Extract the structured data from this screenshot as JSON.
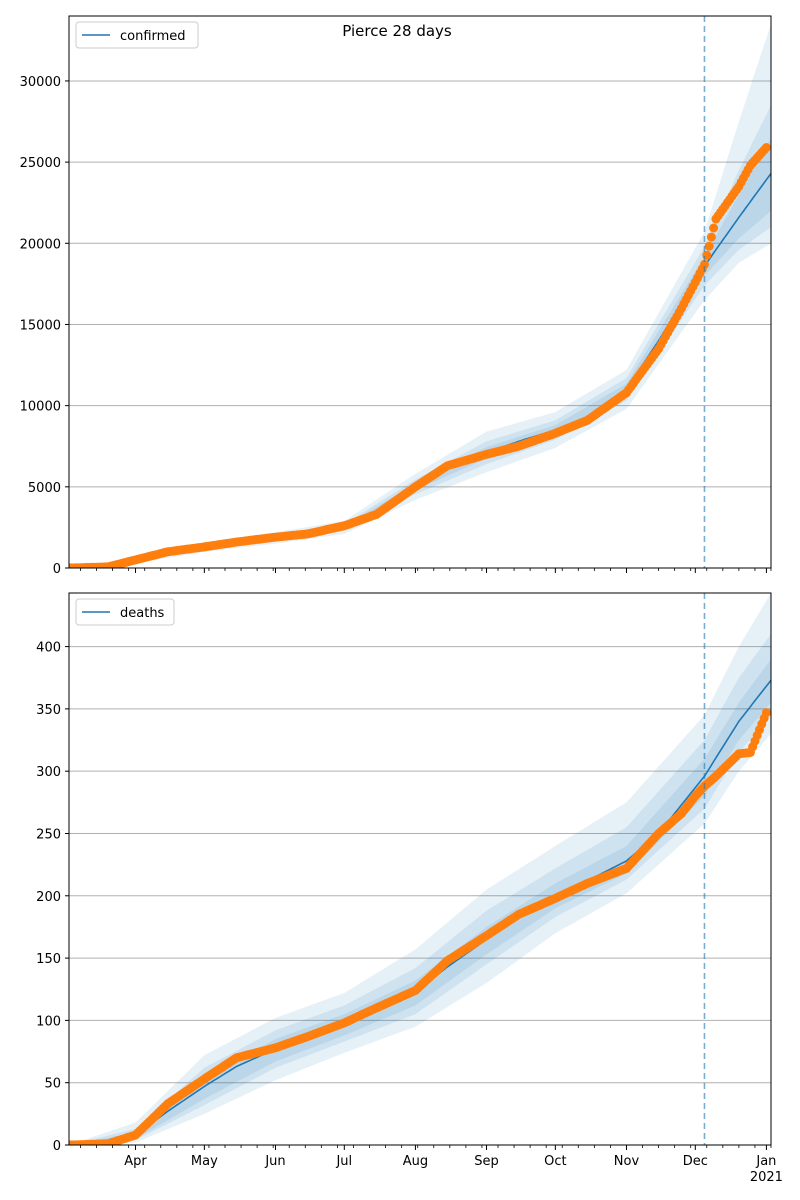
{
  "title": "Pierce 28 days",
  "colors": {
    "model": "#1f77b4",
    "observed": "#ff7f0e",
    "band": "#1f77b4",
    "grid": "#b0b0b0",
    "axis": "#000000"
  },
  "chart_data": [
    {
      "type": "line",
      "panel": "top",
      "title": "Pierce 28 days",
      "legend": [
        "confirmed"
      ],
      "legend_position": "top-left",
      "grid": "y",
      "ylim": [
        0,
        34000
      ],
      "yticks": [
        0,
        5000,
        10000,
        15000,
        20000,
        25000,
        30000
      ],
      "x_range": [
        "2020-03-03",
        "2021-01-03"
      ],
      "forecast_start": "2020-12-05",
      "series": [
        {
          "name": "confirmed",
          "kind": "model",
          "x": [
            "2020-03-03",
            "2020-03-20",
            "2020-04-01",
            "2020-04-15",
            "2020-05-01",
            "2020-05-15",
            "2020-06-01",
            "2020-06-15",
            "2020-07-01",
            "2020-07-15",
            "2020-08-01",
            "2020-08-15",
            "2020-09-01",
            "2020-09-15",
            "2020-10-01",
            "2020-10-15",
            "2020-11-01",
            "2020-11-15",
            "2020-12-05",
            "2020-12-20",
            "2021-01-03"
          ],
          "values": [
            0,
            80,
            450,
            1000,
            1300,
            1600,
            1850,
            2050,
            2500,
            3200,
            5000,
            6300,
            7100,
            7800,
            8500,
            9300,
            11000,
            14000,
            18600,
            21600,
            24300
          ]
        },
        {
          "name": "observed",
          "kind": "observed",
          "x": [
            "2020-03-03",
            "2020-03-20",
            "2020-04-01",
            "2020-04-15",
            "2020-05-01",
            "2020-05-15",
            "2020-06-01",
            "2020-06-15",
            "2020-07-01",
            "2020-07-15",
            "2020-08-01",
            "2020-08-15",
            "2020-09-01",
            "2020-09-15",
            "2020-10-01",
            "2020-10-15",
            "2020-11-01",
            "2020-11-15",
            "2020-11-25",
            "2020-12-01",
            "2020-12-05",
            "2020-12-10",
            "2020-12-15",
            "2020-12-20",
            "2020-12-25",
            "2021-01-01"
          ],
          "values": [
            0,
            70,
            500,
            1000,
            1300,
            1600,
            1900,
            2100,
            2600,
            3300,
            5000,
            6300,
            7000,
            7500,
            8300,
            9100,
            10800,
            13500,
            16000,
            17600,
            18700,
            21500,
            22500,
            23500,
            24800,
            25900
          ]
        }
      ],
      "bands": {
        "x": [
          "2020-03-03",
          "2020-04-01",
          "2020-05-01",
          "2020-06-01",
          "2020-07-01",
          "2020-08-01",
          "2020-09-01",
          "2020-10-01",
          "2020-11-01",
          "2020-12-05",
          "2020-12-20",
          "2021-01-03"
        ],
        "lower": [
          [
            0,
            300,
            1000,
            1500,
            2100,
            4200,
            5900,
            7400,
            9800,
            16500,
            18800,
            20000
          ],
          [
            0,
            380,
            1120,
            1650,
            2300,
            4550,
            6400,
            7900,
            10300,
            17400,
            19600,
            21000
          ],
          [
            0,
            420,
            1210,
            1750,
            2400,
            4800,
            6750,
            8200,
            10650,
            18000,
            20300,
            22000
          ]
        ],
        "upper": [
          [
            0,
            480,
            1390,
            1950,
            2600,
            5200,
            7450,
            8800,
            11350,
            19200,
            23000,
            26500
          ],
          [
            0,
            520,
            1480,
            2050,
            2700,
            5450,
            7800,
            9100,
            11700,
            19800,
            24500,
            28500
          ],
          [
            0,
            600,
            1600,
            2200,
            2900,
            5800,
            8400,
            9600,
            12200,
            20700,
            27500,
            33500
          ]
        ]
      }
    },
    {
      "type": "line",
      "panel": "bottom",
      "legend": [
        "deaths"
      ],
      "legend_position": "top-left",
      "grid": "y",
      "ylim": [
        0,
        443
      ],
      "yticks": [
        0,
        50,
        100,
        150,
        200,
        250,
        300,
        350,
        400
      ],
      "x_range": [
        "2020-03-03",
        "2021-01-03"
      ],
      "xticks": [
        "Apr",
        "May",
        "Jun",
        "Jul",
        "Aug",
        "Sep",
        "Oct",
        "Nov",
        "Dec",
        "Jan"
      ],
      "xtick_year": "2021",
      "forecast_start": "2020-12-05",
      "series": [
        {
          "name": "deaths",
          "kind": "model",
          "x": [
            "2020-03-03",
            "2020-03-20",
            "2020-04-01",
            "2020-04-15",
            "2020-05-01",
            "2020-05-15",
            "2020-06-01",
            "2020-06-15",
            "2020-07-01",
            "2020-07-15",
            "2020-08-01",
            "2020-08-15",
            "2020-09-01",
            "2020-09-15",
            "2020-10-01",
            "2020-10-15",
            "2020-11-01",
            "2020-11-15",
            "2020-12-05",
            "2020-12-20",
            "2021-01-03"
          ],
          "values": [
            0,
            1,
            8,
            27,
            47,
            63,
            77,
            86,
            97,
            108,
            123,
            143,
            165,
            183,
            200,
            212,
            228,
            250,
            296,
            340,
            373
          ]
        },
        {
          "name": "observed",
          "kind": "observed",
          "x": [
            "2020-03-03",
            "2020-03-20",
            "2020-04-01",
            "2020-04-15",
            "2020-05-01",
            "2020-05-15",
            "2020-06-01",
            "2020-06-15",
            "2020-07-01",
            "2020-07-15",
            "2020-08-01",
            "2020-08-15",
            "2020-09-01",
            "2020-09-15",
            "2020-10-01",
            "2020-10-15",
            "2020-11-01",
            "2020-11-15",
            "2020-11-25",
            "2020-12-01",
            "2020-12-05",
            "2020-12-10",
            "2020-12-15",
            "2020-12-20",
            "2020-12-25",
            "2021-01-01"
          ],
          "values": [
            0,
            1,
            8,
            33,
            53,
            70,
            78,
            87,
            98,
            110,
            124,
            148,
            168,
            185,
            198,
            210,
            222,
            250,
            266,
            280,
            288,
            296,
            305,
            314,
            315,
            347
          ]
        }
      ],
      "bands": {
        "x": [
          "2020-03-03",
          "2020-04-01",
          "2020-05-01",
          "2020-06-01",
          "2020-07-01",
          "2020-08-01",
          "2020-09-01",
          "2020-10-01",
          "2020-11-01",
          "2020-12-05",
          "2020-12-20",
          "2021-01-03"
        ],
        "lower": [
          [
            0,
            2,
            25,
            52,
            74,
            95,
            130,
            170,
            202,
            258,
            300,
            330
          ],
          [
            0,
            4,
            32,
            62,
            83,
            105,
            145,
            183,
            213,
            270,
            315,
            345
          ],
          [
            0,
            5,
            37,
            67,
            88,
            112,
            153,
            190,
            218,
            280,
            325,
            355
          ]
        ],
        "upper": [
          [
            0,
            10,
            55,
            85,
            105,
            132,
            175,
            210,
            240,
            310,
            355,
            390
          ],
          [
            0,
            13,
            62,
            92,
            112,
            142,
            188,
            222,
            255,
            325,
            375,
            410
          ],
          [
            0,
            18,
            72,
            102,
            122,
            157,
            205,
            240,
            275,
            345,
            400,
            443
          ]
        ]
      }
    }
  ]
}
